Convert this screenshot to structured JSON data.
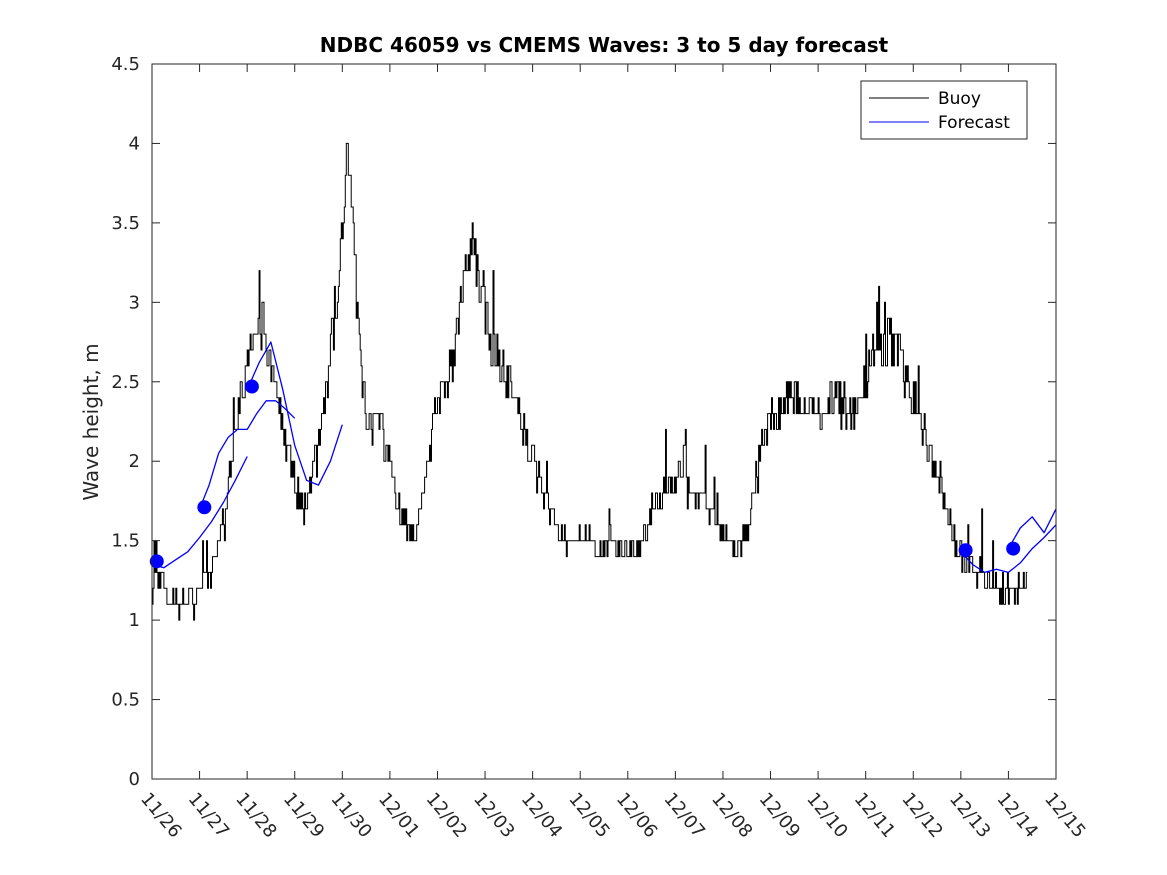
{
  "chart_data": {
    "type": "line",
    "title": "NDBC 46059 vs CMEMS Waves: 3 to 5 day forecast",
    "xlabel": "",
    "ylabel": "Wave height, m",
    "xlim": [
      0,
      19
    ],
    "ylim": [
      0,
      4.5
    ],
    "x_tick_labels": [
      "11/26",
      "11/27",
      "11/28",
      "11/29",
      "11/30",
      "12/01",
      "12/02",
      "12/03",
      "12/04",
      "12/05",
      "12/06",
      "12/07",
      "12/08",
      "12/09",
      "12/10",
      "12/11",
      "12/12",
      "12/13",
      "12/14",
      "12/15"
    ],
    "y_tick_labels": [
      "0",
      "0.5",
      "1",
      "1.5",
      "2",
      "2.5",
      "3",
      "3.5",
      "4",
      "4.5"
    ],
    "legend": {
      "position": "top-right",
      "entries": [
        {
          "label": "Buoy",
          "color": "#000000"
        },
        {
          "label": "Forecast",
          "color": "#0000ff"
        }
      ]
    },
    "buoy_color": "#000000",
    "forecast_color": "#0000ff",
    "buoy_anchors": [
      [
        0.0,
        1.2
      ],
      [
        0.2,
        1.3
      ],
      [
        0.35,
        1.1
      ],
      [
        0.6,
        1.1
      ],
      [
        0.8,
        1.15
      ],
      [
        1.0,
        1.2
      ],
      [
        1.2,
        1.3
      ],
      [
        1.4,
        1.5
      ],
      [
        1.6,
        1.8
      ],
      [
        1.8,
        2.3
      ],
      [
        2.0,
        2.6
      ],
      [
        2.15,
        2.8
      ],
      [
        2.3,
        2.9
      ],
      [
        2.45,
        2.6
      ],
      [
        2.6,
        2.4
      ],
      [
        2.75,
        2.2
      ],
      [
        2.9,
        2.0
      ],
      [
        3.05,
        1.8
      ],
      [
        3.2,
        1.7
      ],
      [
        3.35,
        1.9
      ],
      [
        3.5,
        2.1
      ],
      [
        3.7,
        2.6
      ],
      [
        3.9,
        3.1
      ],
      [
        4.0,
        3.5
      ],
      [
        4.1,
        3.9
      ],
      [
        4.2,
        3.6
      ],
      [
        4.3,
        3.0
      ],
      [
        4.4,
        2.6
      ],
      [
        4.5,
        2.3
      ],
      [
        4.6,
        2.2
      ],
      [
        4.75,
        2.3
      ],
      [
        4.9,
        2.1
      ],
      [
        5.05,
        1.9
      ],
      [
        5.2,
        1.7
      ],
      [
        5.35,
        1.6
      ],
      [
        5.5,
        1.55
      ],
      [
        5.65,
        1.7
      ],
      [
        5.8,
        2.0
      ],
      [
        6.0,
        2.4
      ],
      [
        6.2,
        2.5
      ],
      [
        6.4,
        2.8
      ],
      [
        6.6,
        3.3
      ],
      [
        6.75,
        3.4
      ],
      [
        6.9,
        3.0
      ],
      [
        7.1,
        2.8
      ],
      [
        7.3,
        2.6
      ],
      [
        7.5,
        2.5
      ],
      [
        7.7,
        2.3
      ],
      [
        7.9,
        2.1
      ],
      [
        8.1,
        1.9
      ],
      [
        8.3,
        1.7
      ],
      [
        8.5,
        1.6
      ],
      [
        8.7,
        1.5
      ],
      [
        8.9,
        1.5
      ],
      [
        9.2,
        1.5
      ],
      [
        9.5,
        1.45
      ],
      [
        9.8,
        1.45
      ],
      [
        10.1,
        1.45
      ],
      [
        10.3,
        1.5
      ],
      [
        10.5,
        1.65
      ],
      [
        10.7,
        1.8
      ],
      [
        10.9,
        1.9
      ],
      [
        11.1,
        1.85
      ],
      [
        11.3,
        1.8
      ],
      [
        11.5,
        1.75
      ],
      [
        11.7,
        1.7
      ],
      [
        11.9,
        1.6
      ],
      [
        12.1,
        1.5
      ],
      [
        12.3,
        1.45
      ],
      [
        12.5,
        1.55
      ],
      [
        12.7,
        1.9
      ],
      [
        12.9,
        2.2
      ],
      [
        13.1,
        2.3
      ],
      [
        13.3,
        2.35
      ],
      [
        13.5,
        2.4
      ],
      [
        13.7,
        2.3
      ],
      [
        13.9,
        2.35
      ],
      [
        14.1,
        2.3
      ],
      [
        14.3,
        2.4
      ],
      [
        14.5,
        2.35
      ],
      [
        14.7,
        2.3
      ],
      [
        14.9,
        2.45
      ],
      [
        15.1,
        2.6
      ],
      [
        15.3,
        2.7
      ],
      [
        15.5,
        2.8
      ],
      [
        15.7,
        2.65
      ],
      [
        15.9,
        2.5
      ],
      [
        16.1,
        2.3
      ],
      [
        16.3,
        2.1
      ],
      [
        16.5,
        1.9
      ],
      [
        16.7,
        1.7
      ],
      [
        16.85,
        1.5
      ],
      [
        17.0,
        1.4
      ],
      [
        17.2,
        1.35
      ],
      [
        17.4,
        1.3
      ],
      [
        17.6,
        1.25
      ],
      [
        17.8,
        1.2
      ],
      [
        18.0,
        1.2
      ],
      [
        18.2,
        1.2
      ],
      [
        18.4,
        1.25
      ]
    ],
    "forecast_series": [
      {
        "name": "Forecast",
        "x": [
          0.0,
          0.25,
          0.5,
          0.75,
          1.0,
          1.25,
          1.5,
          1.75,
          2.0
        ],
        "y": [
          1.35,
          1.33,
          1.38,
          1.43,
          1.52,
          1.62,
          1.74,
          1.88,
          2.03
        ]
      },
      {
        "name": "Forecast",
        "x": [
          1.0,
          1.2,
          1.4,
          1.6,
          1.8,
          2.0,
          2.2,
          2.4,
          2.6,
          2.8,
          3.0
        ],
        "y": [
          1.7,
          1.85,
          2.05,
          2.15,
          2.2,
          2.2,
          2.3,
          2.38,
          2.38,
          2.33,
          2.27
        ]
      },
      {
        "name": "Forecast",
        "x": [
          2.0,
          2.25,
          2.5,
          2.75,
          3.0,
          3.25,
          3.5,
          3.75,
          4.0
        ],
        "y": [
          2.45,
          2.62,
          2.75,
          2.45,
          2.1,
          1.88,
          1.85,
          2.0,
          2.23
        ]
      },
      {
        "name": "Forecast",
        "x": [
          17.0,
          17.25,
          17.5,
          17.75,
          18.0,
          18.25,
          18.5,
          18.75,
          19.0
        ],
        "y": [
          1.43,
          1.35,
          1.3,
          1.32,
          1.3,
          1.36,
          1.45,
          1.52,
          1.6
        ]
      },
      {
        "name": "Forecast",
        "x": [
          18.0,
          18.25,
          18.5,
          18.75,
          19.0
        ],
        "y": [
          1.45,
          1.58,
          1.65,
          1.55,
          1.7
        ]
      }
    ],
    "forecast_markers": [
      {
        "x": 0.1,
        "y": 1.37
      },
      {
        "x": 1.1,
        "y": 1.71
      },
      {
        "x": 2.1,
        "y": 2.47
      },
      {
        "x": 17.1,
        "y": 1.44
      },
      {
        "x": 18.1,
        "y": 1.45
      }
    ]
  }
}
